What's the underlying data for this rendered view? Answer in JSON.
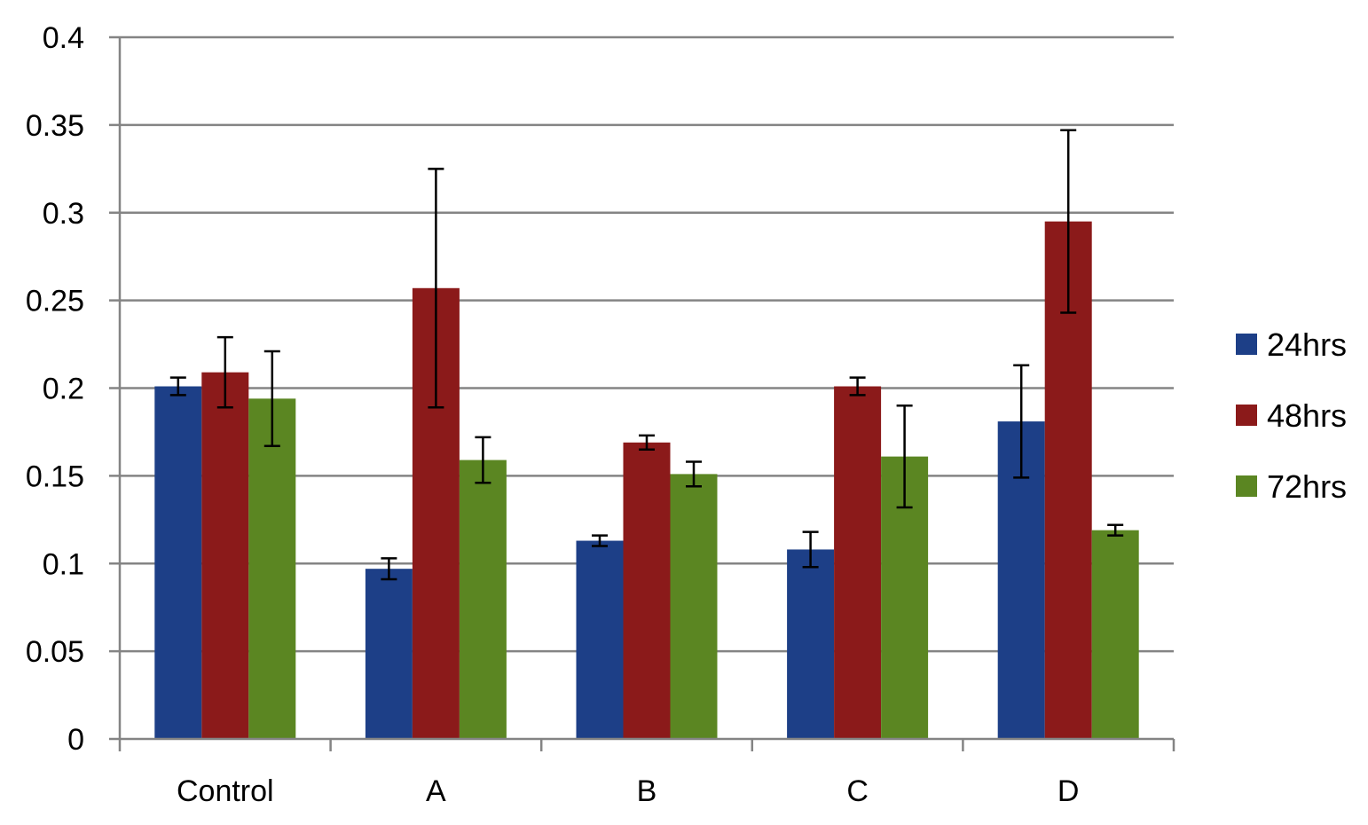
{
  "chart_data": {
    "type": "bar",
    "title": "",
    "xlabel": "",
    "ylabel": "",
    "ylim": [
      0,
      0.4
    ],
    "yticks": [
      "0",
      "0.05",
      "0.1",
      "0.15",
      "0.2",
      "0.25",
      "0.3",
      "0.35",
      "0.4"
    ],
    "categories": [
      "Control",
      "A",
      "B",
      "C",
      "D"
    ],
    "grid": true,
    "legend_position": "right",
    "series": [
      {
        "name": "24hrs",
        "color": "#1d3f87",
        "values": [
          0.201,
          0.097,
          0.113,
          0.108,
          0.181
        ],
        "errors": [
          0.005,
          0.006,
          0.003,
          0.01,
          0.032
        ]
      },
      {
        "name": "48hrs",
        "color": "#8b1a1a",
        "values": [
          0.209,
          0.257,
          0.169,
          0.201,
          0.295
        ],
        "errors": [
          0.02,
          0.068,
          0.004,
          0.005,
          0.052
        ]
      },
      {
        "name": "72hrs",
        "color": "#5b8622",
        "values": [
          0.194,
          0.159,
          0.151,
          0.161,
          0.119
        ],
        "errors": [
          0.027,
          0.013,
          0.007,
          0.029,
          0.003
        ]
      }
    ]
  }
}
